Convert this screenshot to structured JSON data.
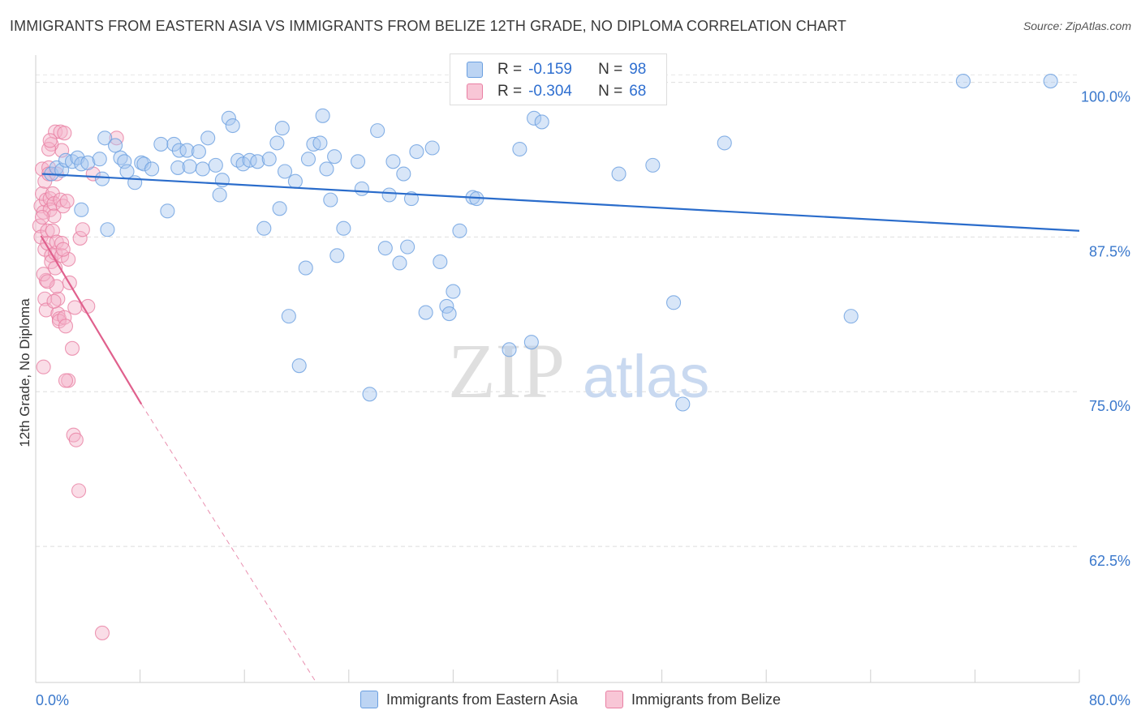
{
  "title": "IMMIGRANTS FROM EASTERN ASIA VS IMMIGRANTS FROM BELIZE 12TH GRADE, NO DIPLOMA CORRELATION CHART",
  "source": "Source: ZipAtlas.com",
  "watermark": {
    "zip": "ZIP",
    "atlas": "atlas"
  },
  "colors": {
    "blue_fill": "#a9c8f0",
    "blue_stroke": "#6a9fe0",
    "blue_line": "#2a6ccb",
    "pink_fill": "#f5b3c9",
    "pink_stroke": "#e97fa3",
    "pink_line": "#e0608d",
    "axis_label": "#3a78cc"
  },
  "legend_stats": [
    {
      "r_label": "R =",
      "r_value": "-0.159",
      "n_label": "N =",
      "n_value": "98",
      "color": "blue"
    },
    {
      "r_label": "R =",
      "r_value": "-0.304",
      "n_label": "N =",
      "n_value": "68",
      "color": "pink"
    }
  ],
  "chart_data": {
    "type": "scatter",
    "title": "IMMIGRANTS FROM EASTERN ASIA VS IMMIGRANTS FROM BELIZE 12TH GRADE, NO DIPLOMA CORRELATION CHART",
    "xlabel": "",
    "ylabel": "12th Grade, No Diploma",
    "xlim": [
      0,
      80
    ],
    "ylim": [
      51.5,
      102.2
    ],
    "x_tick_labels": [
      "0.0%",
      "80.0%"
    ],
    "y_ticks": [
      100,
      87.5,
      75,
      62.5
    ],
    "y_tick_labels": [
      "100.0%",
      "87.5%",
      "75.0%",
      "62.5%"
    ],
    "x_minor_ticks": [
      8,
      16,
      24,
      32,
      40,
      48,
      56,
      64,
      72,
      80
    ],
    "grid": true,
    "legend_position": "bottom",
    "series": [
      {
        "name": "Immigrants from Eastern Asia",
        "color": "blue",
        "trend": [
          [
            0.5,
            92.6
          ],
          [
            80,
            88.0
          ]
        ],
        "points": [
          [
            1.2,
            92.6
          ],
          [
            1.6,
            93.1
          ],
          [
            2.0,
            92.9
          ],
          [
            2.3,
            93.7
          ],
          [
            2.8,
            93.6
          ],
          [
            3.2,
            93.9
          ],
          [
            3.5,
            93.4
          ],
          [
            4.0,
            93.5
          ],
          [
            3.5,
            89.7
          ],
          [
            4.9,
            93.8
          ],
          [
            5.1,
            92.2
          ],
          [
            5.3,
            95.5
          ],
          [
            5.5,
            88.1
          ],
          [
            6.1,
            94.9
          ],
          [
            6.5,
            93.9
          ],
          [
            6.8,
            93.6
          ],
          [
            7.0,
            92.8
          ],
          [
            7.6,
            91.9
          ],
          [
            8.1,
            93.5
          ],
          [
            8.3,
            93.4
          ],
          [
            8.9,
            93.0
          ],
          [
            9.6,
            95.0
          ],
          [
            10.1,
            89.6
          ],
          [
            10.6,
            95.0
          ],
          [
            10.9,
            93.1
          ],
          [
            11.0,
            94.5
          ],
          [
            11.6,
            94.5
          ],
          [
            11.8,
            93.2
          ],
          [
            12.5,
            94.4
          ],
          [
            12.8,
            93.0
          ],
          [
            13.2,
            95.5
          ],
          [
            13.8,
            93.3
          ],
          [
            14.1,
            90.9
          ],
          [
            14.3,
            92.1
          ],
          [
            14.8,
            97.1
          ],
          [
            15.1,
            96.5
          ],
          [
            15.5,
            93.7
          ],
          [
            15.9,
            93.4
          ],
          [
            16.4,
            93.7
          ],
          [
            17.0,
            93.6
          ],
          [
            17.5,
            88.2
          ],
          [
            17.9,
            93.8
          ],
          [
            18.5,
            95.1
          ],
          [
            18.7,
            89.8
          ],
          [
            18.9,
            96.3
          ],
          [
            19.1,
            92.8
          ],
          [
            19.4,
            81.1
          ],
          [
            19.9,
            92.0
          ],
          [
            20.2,
            77.1
          ],
          [
            20.7,
            85.0
          ],
          [
            20.9,
            93.8
          ],
          [
            21.3,
            95.0
          ],
          [
            21.8,
            95.1
          ],
          [
            22.0,
            97.3
          ],
          [
            22.3,
            93.0
          ],
          [
            22.6,
            90.5
          ],
          [
            22.9,
            94.0
          ],
          [
            23.1,
            86.0
          ],
          [
            23.6,
            88.2
          ],
          [
            24.7,
            93.6
          ],
          [
            25.0,
            91.4
          ],
          [
            25.6,
            74.8
          ],
          [
            26.2,
            96.1
          ],
          [
            26.8,
            86.6
          ],
          [
            27.1,
            90.9
          ],
          [
            27.4,
            93.6
          ],
          [
            27.9,
            85.4
          ],
          [
            28.2,
            92.6
          ],
          [
            28.5,
            86.7
          ],
          [
            28.8,
            90.6
          ],
          [
            29.2,
            94.4
          ],
          [
            29.9,
            81.4
          ],
          [
            30.4,
            94.7
          ],
          [
            31.0,
            85.5
          ],
          [
            31.5,
            81.9
          ],
          [
            31.7,
            81.3
          ],
          [
            32.0,
            83.1
          ],
          [
            32.5,
            88.0
          ],
          [
            33.5,
            90.7
          ],
          [
            33.8,
            90.6
          ],
          [
            36.3,
            78.4
          ],
          [
            37.1,
            94.6
          ],
          [
            38.0,
            79.0
          ],
          [
            38.2,
            97.1
          ],
          [
            38.8,
            96.8
          ],
          [
            44.7,
            92.6
          ],
          [
            45.7,
            100.1
          ],
          [
            47.3,
            93.3
          ],
          [
            48.9,
            82.2
          ],
          [
            49.6,
            74.0
          ],
          [
            52.8,
            95.1
          ],
          [
            62.5,
            81.1
          ],
          [
            71.1,
            100.1
          ],
          [
            77.8,
            100.1
          ],
          [
            38.4,
            100.1
          ],
          [
            37.5,
            99.4
          ],
          [
            36.0,
            99.6
          ],
          [
            40.1,
            100.0
          ]
        ]
      },
      {
        "name": "Immigrants from Belize",
        "color": "pink",
        "trend": [
          [
            0.4,
            87.6
          ],
          [
            8.1,
            74.0
          ]
        ],
        "trend_dashed": [
          [
            8.1,
            74.0
          ],
          [
            21.5,
            51.5
          ]
        ],
        "points": [
          [
            0.3,
            88.4
          ],
          [
            0.4,
            90.0
          ],
          [
            0.4,
            87.5
          ],
          [
            0.5,
            93.0
          ],
          [
            0.5,
            91.0
          ],
          [
            0.6,
            89.5
          ],
          [
            0.7,
            92.0
          ],
          [
            0.7,
            86.5
          ],
          [
            0.8,
            90.5
          ],
          [
            0.8,
            84.0
          ],
          [
            0.9,
            88.0
          ],
          [
            0.9,
            87.0
          ],
          [
            1.0,
            93.1
          ],
          [
            1.0,
            92.6
          ],
          [
            1.1,
            90.6
          ],
          [
            1.1,
            89.7
          ],
          [
            1.2,
            86.0
          ],
          [
            1.2,
            85.5
          ],
          [
            1.3,
            91.0
          ],
          [
            1.3,
            88.0
          ],
          [
            0.6,
            84.5
          ],
          [
            0.7,
            82.5
          ],
          [
            0.8,
            81.6
          ],
          [
            0.6,
            77.0
          ],
          [
            1.4,
            90.2
          ],
          [
            1.4,
            89.2
          ],
          [
            1.5,
            86.2
          ],
          [
            1.5,
            85.0
          ],
          [
            1.6,
            92.6
          ],
          [
            1.6,
            87.1
          ],
          [
            1.7,
            82.5
          ],
          [
            1.7,
            81.3
          ],
          [
            1.8,
            80.9
          ],
          [
            1.8,
            80.7
          ],
          [
            1.9,
            90.5
          ],
          [
            2.0,
            87.0
          ],
          [
            2.0,
            86.0
          ],
          [
            2.1,
            90.0
          ],
          [
            2.2,
            81.0
          ],
          [
            2.3,
            80.3
          ],
          [
            2.4,
            90.4
          ],
          [
            2.5,
            85.7
          ],
          [
            2.6,
            83.8
          ],
          [
            2.8,
            78.5
          ],
          [
            2.9,
            71.5
          ],
          [
            3.0,
            81.8
          ],
          [
            3.1,
            71.1
          ],
          [
            3.3,
            67.0
          ],
          [
            3.4,
            87.4
          ],
          [
            3.6,
            88.1
          ],
          [
            4.0,
            81.9
          ],
          [
            4.4,
            92.6
          ],
          [
            6.2,
            95.5
          ],
          [
            1.5,
            96.0
          ],
          [
            1.9,
            96.0
          ],
          [
            2.2,
            95.9
          ],
          [
            2.0,
            94.5
          ],
          [
            1.2,
            95.0
          ],
          [
            1.0,
            94.6
          ],
          [
            2.5,
            75.9
          ],
          [
            2.3,
            75.9
          ],
          [
            1.6,
            83.5
          ],
          [
            1.4,
            82.3
          ],
          [
            2.1,
            86.5
          ],
          [
            0.9,
            83.9
          ],
          [
            0.5,
            89.1
          ],
          [
            5.1,
            55.5
          ],
          [
            1.1,
            95.3
          ]
        ]
      }
    ]
  }
}
